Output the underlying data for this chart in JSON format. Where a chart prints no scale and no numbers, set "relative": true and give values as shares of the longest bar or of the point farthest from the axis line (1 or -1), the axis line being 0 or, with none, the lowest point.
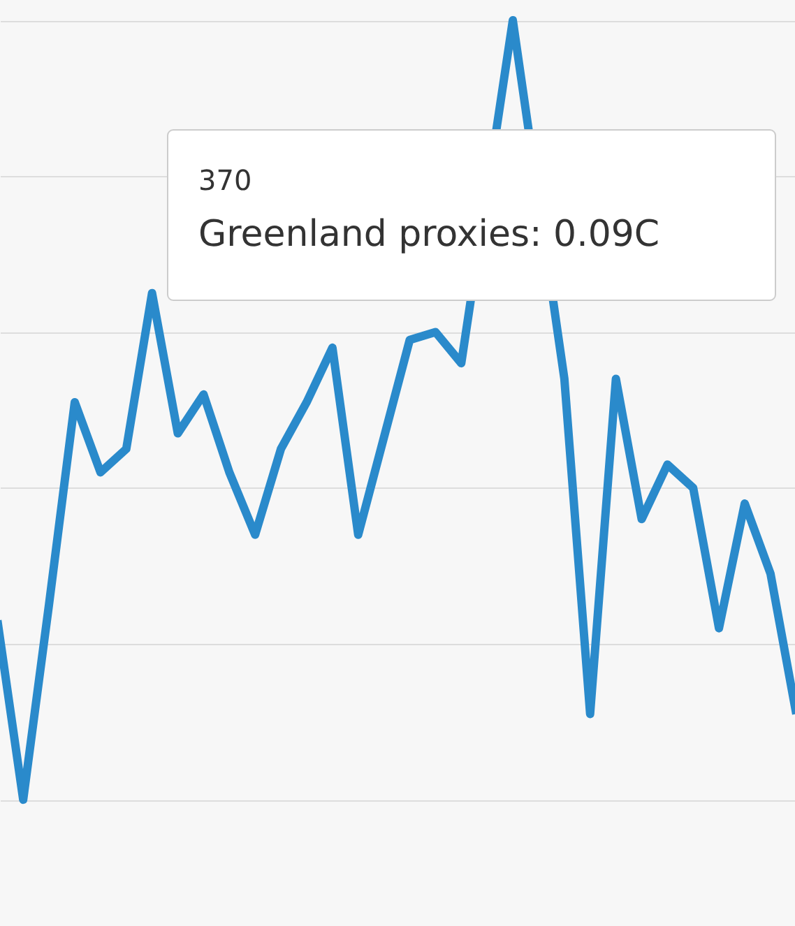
{
  "chart_data": {
    "type": "line",
    "relative": true,
    "grid": "y",
    "categories": [
      null,
      null,
      null,
      null,
      null,
      null,
      null,
      null,
      null,
      null,
      null,
      null,
      null,
      null,
      null,
      null,
      null,
      null,
      null,
      null,
      null,
      null,
      null,
      null,
      null,
      null,
      null,
      null,
      null,
      null,
      null,
      null
    ],
    "series": [
      {
        "color": "#2a8acb",
        "values": [
          0.23,
          0,
          0.25,
          0.51,
          0.42,
          0.45,
          0.65,
          0.47,
          0.52,
          0.42,
          0.34,
          0.45,
          0.51,
          0.58,
          0.34,
          null,
          0.59,
          0.6,
          0.56,
          null,
          1,
          null,
          0.54,
          0.11,
          0.54,
          0.36,
          0.43,
          0.4,
          0.22,
          0.38,
          0.29,
          0.11
        ]
      }
    ],
    "annotations": [
      "370",
      "Greenland proxies: 0.09C"
    ]
  }
}
